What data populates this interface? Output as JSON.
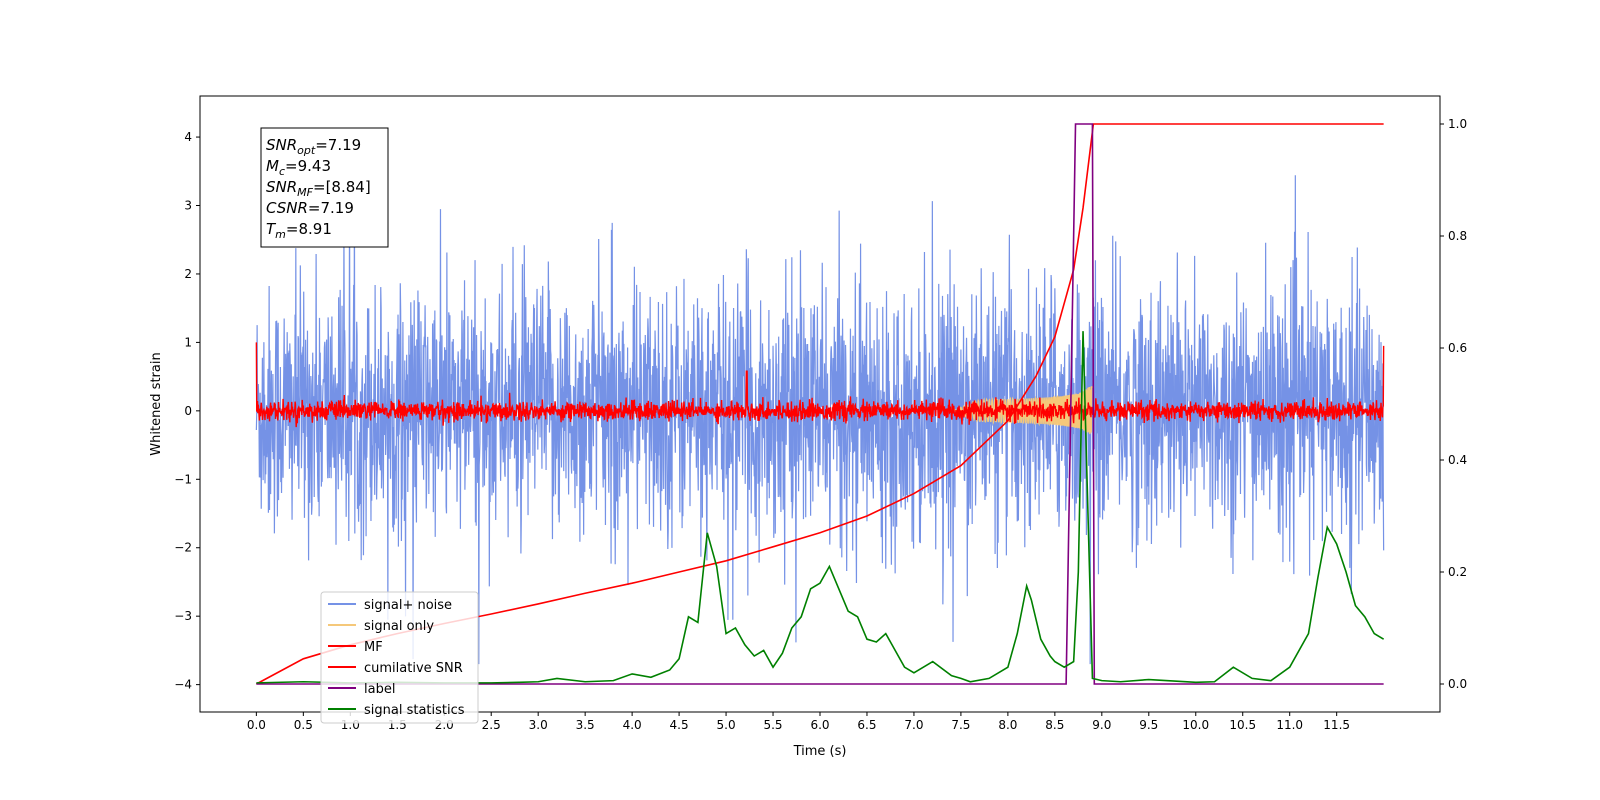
{
  "chart_data": {
    "type": "line",
    "xlabel": "Time (s)",
    "ylabel": "Whitened strain",
    "xlim": [
      -0.6,
      12.6
    ],
    "ylim": [
      -4.4,
      4.6
    ],
    "ylim_right": [
      -0.05,
      1.05
    ],
    "x_ticks": [
      "0.0",
      "0.5",
      "1.0",
      "1.5",
      "2.0",
      "2.5",
      "3.0",
      "3.5",
      "4.0",
      "4.5",
      "5.0",
      "5.5",
      "6.0",
      "6.5",
      "7.0",
      "7.5",
      "8.0",
      "8.5",
      "9.0",
      "9.5",
      "10.0",
      "10.5",
      "11.0",
      "11.5"
    ],
    "y_ticks_left": [
      "4",
      "3",
      "2",
      "1",
      "0",
      "−1",
      "−2",
      "−3",
      "−4"
    ],
    "y_ticks_right": [
      "1.0",
      "0.8",
      "0.6",
      "0.4",
      "0.2",
      "0.0"
    ],
    "legend_placement": "lower-left",
    "info_box": {
      "snr_opt": {
        "sym": "SNR",
        "sub": "opt",
        "val": "=7.19"
      },
      "mc": {
        "sym": "M",
        "sub": "c",
        "val": "=9.43"
      },
      "snr_mf": {
        "sym": "SNR",
        "sub": "MF",
        "val": "=[8.84]"
      },
      "csnr": {
        "sym": "CSNR",
        "sub": "",
        "val": "=7.19"
      },
      "tm": {
        "sym": "T",
        "sub": "m",
        "val": "=8.91"
      }
    },
    "series": [
      {
        "name": "signal+ noise",
        "color": "#7592e6",
        "axis": "left",
        "description": "noisy whitened strain, approx. ±2.5 envelope with spikes to 4.2 and -3.7"
      },
      {
        "name": "signal only",
        "color": "#f5c87a",
        "axis": "left",
        "description": "chirp growing from 7.5 s to 8.9 s, peak amplitude about 0.35"
      },
      {
        "name": "MF",
        "color": "#ff0000",
        "axis": "left",
        "description": "matched filter output near 0 with noise ±0.15, edge spike to 1.0"
      },
      {
        "name": "cumilative SNR",
        "color": "#ff0000",
        "axis": "right",
        "x": [
          0.0,
          0.5,
          1.0,
          1.5,
          2.0,
          2.5,
          3.0,
          3.5,
          4.0,
          4.5,
          5.0,
          5.5,
          6.0,
          6.5,
          7.0,
          7.5,
          8.0,
          8.3,
          8.5,
          8.7,
          8.8,
          8.91,
          12.0
        ],
        "values": [
          0.0,
          0.045,
          0.07,
          0.09,
          0.108,
          0.125,
          0.143,
          0.162,
          0.18,
          0.2,
          0.22,
          0.245,
          0.27,
          0.3,
          0.34,
          0.39,
          0.47,
          0.55,
          0.62,
          0.74,
          0.85,
          1.0,
          1.0
        ]
      },
      {
        "name": "label",
        "color": "#800080",
        "axis": "right",
        "x": [
          0.0,
          8.62,
          8.72,
          8.9,
          8.92,
          12.0
        ],
        "values": [
          0.0,
          0.0,
          1.0,
          1.0,
          0.0,
          0.0
        ]
      },
      {
        "name": "signal statistics",
        "color": "#008000",
        "axis": "right",
        "x": [
          0.0,
          0.5,
          1.0,
          1.5,
          2.0,
          2.5,
          2.8,
          3.0,
          3.2,
          3.5,
          3.8,
          4.0,
          4.2,
          4.4,
          4.5,
          4.6,
          4.7,
          4.8,
          4.9,
          5.0,
          5.1,
          5.2,
          5.3,
          5.4,
          5.5,
          5.6,
          5.7,
          5.8,
          5.9,
          6.0,
          6.1,
          6.2,
          6.3,
          6.4,
          6.5,
          6.6,
          6.7,
          6.8,
          6.9,
          7.0,
          7.2,
          7.4,
          7.5,
          7.6,
          7.8,
          8.0,
          8.1,
          8.2,
          8.25,
          8.35,
          8.45,
          8.5,
          8.6,
          8.7,
          8.75,
          8.8,
          8.85,
          8.9,
          9.0,
          9.2,
          9.5,
          10.0,
          10.2,
          10.4,
          10.6,
          10.8,
          11.0,
          11.2,
          11.3,
          11.4,
          11.5,
          11.6,
          11.7,
          11.8,
          11.9,
          12.0
        ],
        "values": [
          0.002,
          0.004,
          0.002,
          0.003,
          0.002,
          0.002,
          0.003,
          0.004,
          0.01,
          0.004,
          0.006,
          0.018,
          0.012,
          0.025,
          0.045,
          0.12,
          0.11,
          0.27,
          0.21,
          0.09,
          0.1,
          0.07,
          0.05,
          0.06,
          0.03,
          0.055,
          0.1,
          0.12,
          0.17,
          0.18,
          0.21,
          0.17,
          0.13,
          0.12,
          0.08,
          0.075,
          0.09,
          0.06,
          0.03,
          0.02,
          0.04,
          0.015,
          0.01,
          0.004,
          0.01,
          0.03,
          0.09,
          0.175,
          0.15,
          0.08,
          0.05,
          0.04,
          0.03,
          0.04,
          0.2,
          0.63,
          0.32,
          0.01,
          0.006,
          0.004,
          0.008,
          0.003,
          0.004,
          0.03,
          0.01,
          0.006,
          0.03,
          0.09,
          0.19,
          0.28,
          0.25,
          0.2,
          0.14,
          0.12,
          0.09,
          0.08
        ]
      }
    ]
  }
}
